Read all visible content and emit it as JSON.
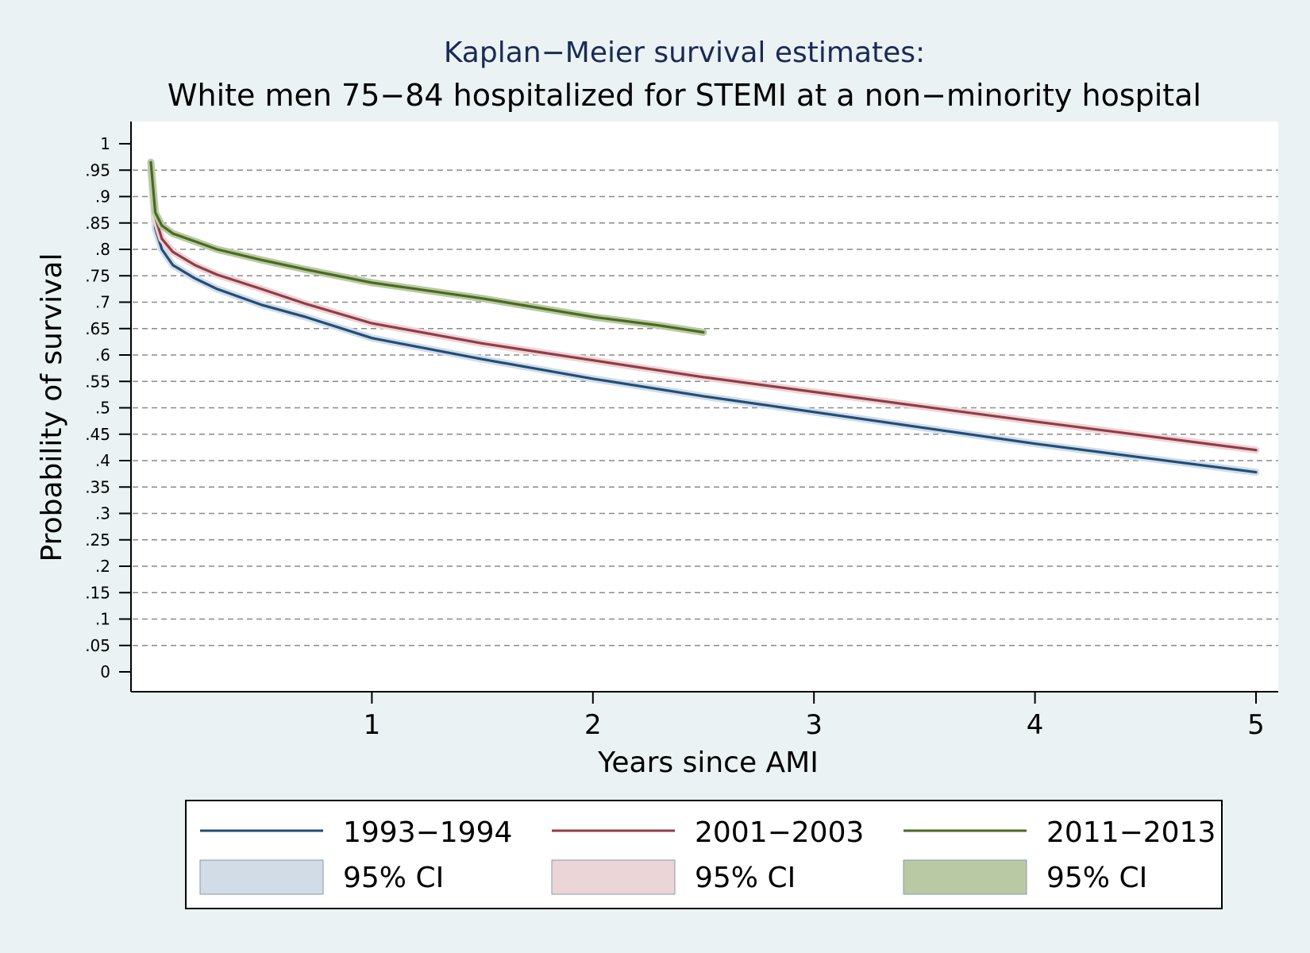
{
  "chart_data": {
    "type": "line",
    "title": "Kaplan−Meier survival estimates:",
    "subtitle": "White men 75−84 hospitalized for STEMI at a non−minority hospital",
    "xlabel": "Years since AMI",
    "ylabel": "Probability of survival",
    "xlim": [
      0,
      5
    ],
    "ylim": [
      0,
      1
    ],
    "x_ticks": [
      "1",
      "2",
      "3",
      "4",
      "5"
    ],
    "y_ticks": [
      "0",
      ".05",
      ".1",
      ".15",
      ".2",
      ".25",
      ".3",
      ".35",
      ".4",
      ".45",
      ".5",
      ".55",
      ".6",
      ".65",
      ".7",
      ".75",
      ".8",
      ".85",
      ".9",
      ".95",
      "1"
    ],
    "grid": "horizontal dashed",
    "legend_position": "bottom",
    "series": [
      {
        "name": "1993−1994",
        "color": "#1f4e79",
        "ci_color": "#d2dce6",
        "ci_label": "95% CI",
        "points": [
          [
            0,
            0.95
          ],
          [
            0.02,
            0.84
          ],
          [
            0.05,
            0.8
          ],
          [
            0.1,
            0.77
          ],
          [
            0.2,
            0.745
          ],
          [
            0.3,
            0.725
          ],
          [
            0.5,
            0.695
          ],
          [
            0.7,
            0.672
          ],
          [
            1.0,
            0.632
          ],
          [
            1.5,
            0.592
          ],
          [
            2.0,
            0.555
          ],
          [
            2.5,
            0.522
          ],
          [
            3.0,
            0.492
          ],
          [
            3.5,
            0.462
          ],
          [
            4.0,
            0.432
          ],
          [
            4.5,
            0.405
          ],
          [
            5.0,
            0.378
          ]
        ]
      },
      {
        "name": "2001−2003",
        "color": "#943b45",
        "ci_color": "#ebd5d7",
        "ci_label": "95% CI",
        "points": [
          [
            0,
            0.95
          ],
          [
            0.02,
            0.86
          ],
          [
            0.05,
            0.82
          ],
          [
            0.1,
            0.795
          ],
          [
            0.2,
            0.77
          ],
          [
            0.3,
            0.752
          ],
          [
            0.5,
            0.725
          ],
          [
            0.7,
            0.697
          ],
          [
            1.0,
            0.66
          ],
          [
            1.5,
            0.622
          ],
          [
            2.0,
            0.59
          ],
          [
            2.5,
            0.558
          ],
          [
            3.0,
            0.53
          ],
          [
            3.5,
            0.502
          ],
          [
            4.0,
            0.474
          ],
          [
            4.5,
            0.447
          ],
          [
            5.0,
            0.42
          ]
        ]
      },
      {
        "name": "2011−2013",
        "color": "#4a6a1d",
        "ci_color": "#b8c9a4",
        "ci_label": "95% CI",
        "points": [
          [
            0,
            0.965
          ],
          [
            0.02,
            0.87
          ],
          [
            0.05,
            0.845
          ],
          [
            0.1,
            0.83
          ],
          [
            0.2,
            0.815
          ],
          [
            0.3,
            0.8
          ],
          [
            0.5,
            0.78
          ],
          [
            0.7,
            0.762
          ],
          [
            1.0,
            0.737
          ],
          [
            1.5,
            0.707
          ],
          [
            2.0,
            0.672
          ],
          [
            2.3,
            0.656
          ],
          [
            2.5,
            0.643
          ]
        ]
      }
    ]
  }
}
